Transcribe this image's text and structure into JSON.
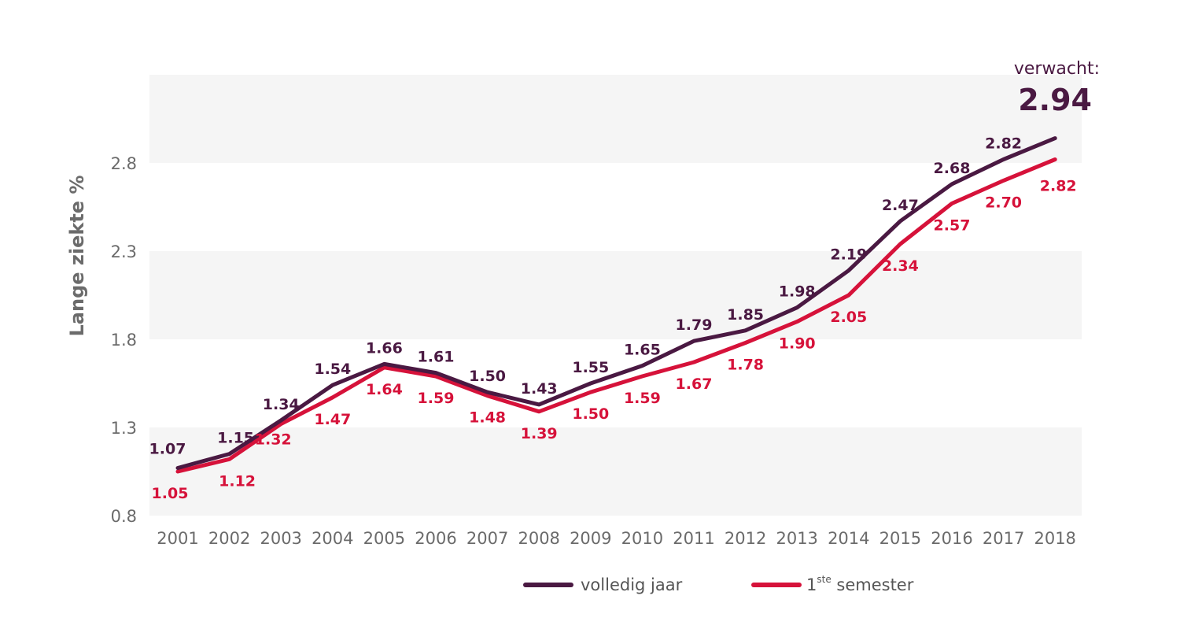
{
  "colors": {
    "series_full": "#4a1942",
    "series_semester": "#d6123a",
    "band": "#f5f5f5",
    "axis_text": "#6b6b6b"
  },
  "chart_data": {
    "type": "line",
    "title": "",
    "xlabel": "",
    "ylabel": "Lange ziekte %",
    "ylim": [
      0.8,
      3.3
    ],
    "yticks": [
      "0.8",
      "1.3",
      "1.8",
      "2.3",
      "2.8"
    ],
    "yticks_values": [
      0.8,
      1.3,
      1.8,
      2.3,
      2.8
    ],
    "categories": [
      "2001",
      "2002",
      "2003",
      "2004",
      "2005",
      "2006",
      "2007",
      "2008",
      "2009",
      "2010",
      "2011",
      "2012",
      "2013",
      "2014",
      "2015",
      "2016",
      "2017",
      "2018"
    ],
    "series": [
      {
        "name": "volledig jaar",
        "key": "full",
        "values": [
          1.07,
          1.15,
          1.34,
          1.54,
          1.66,
          1.61,
          1.5,
          1.43,
          1.55,
          1.65,
          1.79,
          1.85,
          1.98,
          2.19,
          2.47,
          2.68,
          2.82,
          2.94
        ],
        "labels": [
          "1.07",
          "1.15",
          "1.34",
          "1.54",
          "1.66",
          "1.61",
          "1.50",
          "1.43",
          "1.55",
          "1.65",
          "1.79",
          "1.85",
          "1.98",
          "2.19",
          "2.47",
          "2.68",
          "2.82",
          null
        ]
      },
      {
        "name": "1ste semester",
        "key": "semester",
        "values": [
          1.05,
          1.12,
          1.32,
          1.47,
          1.64,
          1.59,
          1.48,
          1.39,
          1.5,
          1.59,
          1.67,
          1.78,
          1.9,
          2.05,
          2.34,
          2.57,
          2.7,
          2.82
        ],
        "labels": [
          "1.05",
          "1.12",
          "1.32",
          "1.47",
          "1.64",
          "1.59",
          "1.48",
          "1.39",
          "1.50",
          "1.59",
          "1.67",
          "1.78",
          "1.90",
          "2.05",
          "2.34",
          "2.57",
          "2.70",
          "2.82"
        ]
      }
    ],
    "annotation": {
      "text": "verwacht:",
      "value": "2.94"
    },
    "legend": {
      "position": "bottom",
      "items": [
        {
          "label": "volledig jaar",
          "sup": ""
        },
        {
          "label_pre": "1",
          "label_sup": "ste",
          "label_post": " semester"
        }
      ]
    }
  }
}
